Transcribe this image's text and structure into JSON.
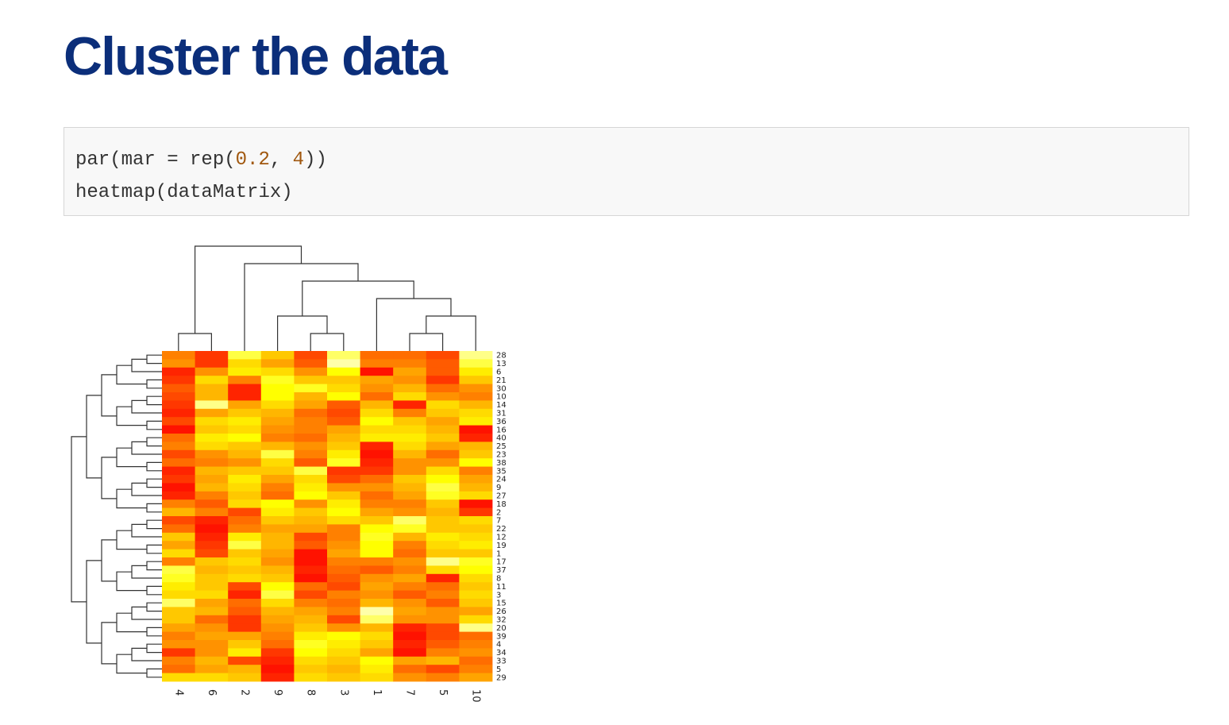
{
  "title": "Cluster the data",
  "code": {
    "line1": {
      "a": "par(mar = rep(",
      "n1": "0.2",
      "b": ", ",
      "n2": "4",
      "c": "))"
    },
    "line2": "heatmap(dataMatrix)"
  },
  "colors": {
    "title": "#0b2e7a",
    "number": "#a0570e",
    "code_text": "#333333"
  },
  "chart_data": {
    "type": "heatmap",
    "title": "",
    "xlabel": "",
    "ylabel": "",
    "color_scale": "heat.colors",
    "col_labels": [
      "4",
      "6",
      "2",
      "9",
      "8",
      "3",
      "1",
      "7",
      "5",
      "10"
    ],
    "row_labels": [
      "28",
      "13",
      "6",
      "21",
      "30",
      "10",
      "14",
      "31",
      "36",
      "16",
      "40",
      "25",
      "23",
      "38",
      "35",
      "24",
      "9",
      "27",
      "18",
      "2",
      "7",
      "22",
      "12",
      "19",
      "1",
      "17",
      "37",
      "8",
      "11",
      "3",
      "15",
      "26",
      "32",
      "20",
      "39",
      "4",
      "34",
      "33",
      "5",
      "29"
    ],
    "values": [
      [
        0.35,
        0.15,
        0.8,
        0.55,
        0.2,
        0.85,
        0.3,
        0.3,
        0.2,
        0.9
      ],
      [
        0.4,
        0.15,
        0.6,
        0.45,
        0.25,
        0.95,
        0.35,
        0.35,
        0.25,
        0.8
      ],
      [
        0.1,
        0.4,
        0.65,
        0.6,
        0.4,
        0.7,
        0.05,
        0.45,
        0.25,
        0.65
      ],
      [
        0.15,
        0.6,
        0.35,
        0.75,
        0.55,
        0.55,
        0.45,
        0.4,
        0.15,
        0.55
      ],
      [
        0.25,
        0.5,
        0.1,
        0.7,
        0.75,
        0.6,
        0.4,
        0.5,
        0.3,
        0.4
      ],
      [
        0.2,
        0.5,
        0.1,
        0.7,
        0.5,
        0.7,
        0.3,
        0.6,
        0.4,
        0.35
      ],
      [
        0.15,
        0.9,
        0.45,
        0.6,
        0.45,
        0.25,
        0.5,
        0.1,
        0.6,
        0.5
      ],
      [
        0.1,
        0.45,
        0.55,
        0.5,
        0.3,
        0.2,
        0.6,
        0.35,
        0.55,
        0.6
      ],
      [
        0.2,
        0.6,
        0.65,
        0.45,
        0.35,
        0.25,
        0.7,
        0.55,
        0.45,
        0.65
      ],
      [
        0.05,
        0.55,
        0.6,
        0.4,
        0.35,
        0.45,
        0.6,
        0.6,
        0.5,
        0.05
      ],
      [
        0.3,
        0.65,
        0.7,
        0.35,
        0.3,
        0.5,
        0.65,
        0.65,
        0.55,
        0.1
      ],
      [
        0.35,
        0.6,
        0.55,
        0.5,
        0.4,
        0.55,
        0.1,
        0.6,
        0.45,
        0.5
      ],
      [
        0.2,
        0.4,
        0.5,
        0.8,
        0.35,
        0.65,
        0.05,
        0.5,
        0.3,
        0.55
      ],
      [
        0.3,
        0.35,
        0.4,
        0.6,
        0.25,
        0.75,
        0.1,
        0.4,
        0.4,
        0.7
      ],
      [
        0.1,
        0.5,
        0.55,
        0.55,
        0.8,
        0.15,
        0.15,
        0.4,
        0.6,
        0.35
      ],
      [
        0.15,
        0.45,
        0.65,
        0.45,
        0.6,
        0.2,
        0.3,
        0.55,
        0.7,
        0.45
      ],
      [
        0.05,
        0.5,
        0.6,
        0.35,
        0.65,
        0.4,
        0.4,
        0.5,
        0.8,
        0.5
      ],
      [
        0.1,
        0.35,
        0.55,
        0.3,
        0.7,
        0.55,
        0.3,
        0.45,
        0.75,
        0.6
      ],
      [
        0.35,
        0.25,
        0.6,
        0.7,
        0.4,
        0.65,
        0.35,
        0.35,
        0.55,
        0.05
      ],
      [
        0.5,
        0.35,
        0.2,
        0.65,
        0.55,
        0.7,
        0.45,
        0.4,
        0.5,
        0.15
      ],
      [
        0.2,
        0.1,
        0.3,
        0.55,
        0.5,
        0.6,
        0.55,
        0.85,
        0.55,
        0.6
      ],
      [
        0.3,
        0.05,
        0.35,
        0.45,
        0.45,
        0.35,
        0.7,
        0.75,
        0.55,
        0.55
      ],
      [
        0.55,
        0.1,
        0.65,
        0.5,
        0.2,
        0.35,
        0.75,
        0.5,
        0.65,
        0.6
      ],
      [
        0.45,
        0.15,
        0.8,
        0.5,
        0.25,
        0.4,
        0.7,
        0.35,
        0.6,
        0.65
      ],
      [
        0.6,
        0.2,
        0.55,
        0.45,
        0.05,
        0.45,
        0.7,
        0.3,
        0.55,
        0.55
      ],
      [
        0.35,
        0.55,
        0.6,
        0.4,
        0.05,
        0.35,
        0.35,
        0.4,
        0.9,
        0.75
      ],
      [
        0.8,
        0.5,
        0.55,
        0.5,
        0.1,
        0.3,
        0.25,
        0.35,
        0.6,
        0.7
      ],
      [
        0.75,
        0.55,
        0.6,
        0.55,
        0.05,
        0.25,
        0.4,
        0.45,
        0.1,
        0.6
      ],
      [
        0.65,
        0.55,
        0.2,
        0.7,
        0.3,
        0.2,
        0.45,
        0.35,
        0.3,
        0.55
      ],
      [
        0.6,
        0.6,
        0.1,
        0.8,
        0.2,
        0.35,
        0.4,
        0.25,
        0.35,
        0.6
      ],
      [
        0.85,
        0.45,
        0.3,
        0.6,
        0.35,
        0.3,
        0.5,
        0.4,
        0.25,
        0.55
      ],
      [
        0.55,
        0.5,
        0.25,
        0.5,
        0.45,
        0.35,
        0.95,
        0.45,
        0.4,
        0.45
      ],
      [
        0.55,
        0.3,
        0.15,
        0.45,
        0.5,
        0.2,
        0.85,
        0.4,
        0.4,
        0.6
      ],
      [
        0.45,
        0.4,
        0.15,
        0.4,
        0.55,
        0.4,
        0.5,
        0.1,
        0.2,
        0.9
      ],
      [
        0.35,
        0.45,
        0.45,
        0.35,
        0.65,
        0.7,
        0.6,
        0.05,
        0.2,
        0.3
      ],
      [
        0.4,
        0.4,
        0.55,
        0.3,
        0.75,
        0.65,
        0.55,
        0.1,
        0.25,
        0.35
      ],
      [
        0.15,
        0.4,
        0.65,
        0.15,
        0.7,
        0.6,
        0.45,
        0.05,
        0.35,
        0.4
      ],
      [
        0.35,
        0.5,
        0.2,
        0.1,
        0.6,
        0.55,
        0.7,
        0.45,
        0.5,
        0.3
      ],
      [
        0.3,
        0.45,
        0.5,
        0.05,
        0.55,
        0.5,
        0.65,
        0.3,
        0.2,
        0.35
      ],
      [
        0.6,
        0.6,
        0.55,
        0.1,
        0.6,
        0.55,
        0.6,
        0.4,
        0.35,
        0.45
      ]
    ]
  }
}
